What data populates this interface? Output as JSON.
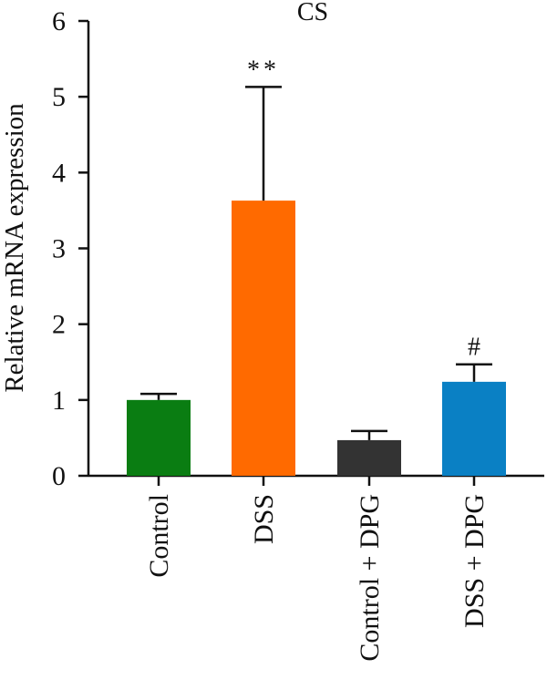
{
  "chart_data": {
    "type": "bar",
    "title": "CS",
    "xlabel": "",
    "ylabel": "Relative mRNA expression",
    "ylim": [
      0,
      6
    ],
    "yticks": [
      "0",
      "1",
      "2",
      "3",
      "4",
      "5",
      "6"
    ],
    "categories": [
      "Control",
      "DSS",
      "Control + DPG",
      "DSS + DPG"
    ],
    "values": [
      1.0,
      3.63,
      0.47,
      1.24
    ],
    "errors": [
      0.08,
      1.5,
      0.12,
      0.23
    ],
    "significance": [
      "",
      "**",
      "",
      "#"
    ],
    "colors": [
      "#0a7d12",
      "#ff6a00",
      "#333333",
      "#0a80c4"
    ],
    "grid": false,
    "legend": "none"
  }
}
